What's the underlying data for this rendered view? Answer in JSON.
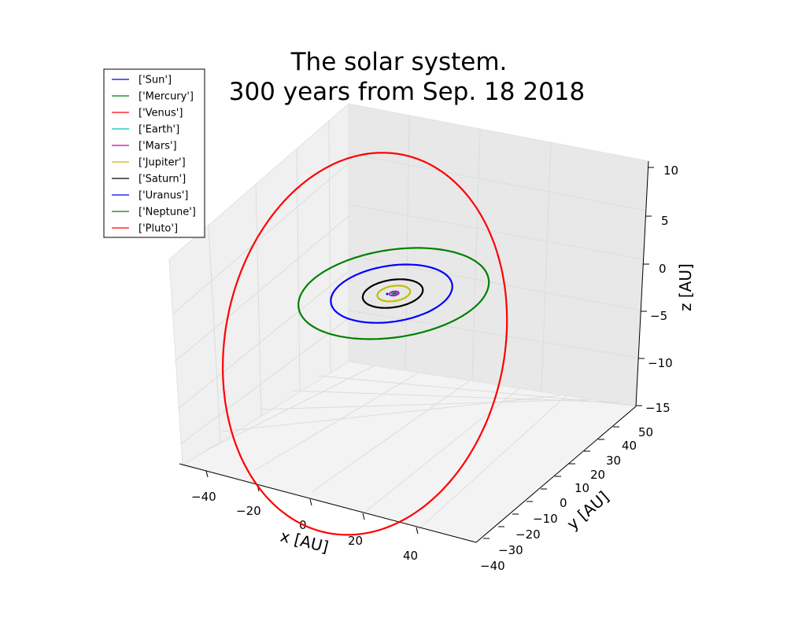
{
  "chart_data": {
    "type": "line",
    "projection": "3d",
    "title_line1": "The solar system.",
    "title_line2": "300 years from Sep. 18 2018",
    "xlabel": "x [AU]",
    "ylabel": "y [AU]",
    "zlabel": "z [AU]",
    "x_ticks": [
      "−40",
      "−20",
      "0",
      "20",
      "40"
    ],
    "y_ticks": [
      "−40",
      "−30",
      "−20",
      "−10",
      "0",
      "10",
      "20",
      "30",
      "40",
      "50"
    ],
    "z_ticks": [
      "−15",
      "−10",
      "−5",
      "0",
      "5",
      "10"
    ],
    "xlim": [
      -50,
      50
    ],
    "ylim": [
      -40,
      50
    ],
    "zlim": [
      -15,
      10
    ],
    "grid": true,
    "legend_position": "top-left",
    "series": [
      {
        "name": "['Sun']",
        "color": "#0000ff",
        "semi_major_axis": 0.0,
        "eccentricity": 0.0,
        "inclination_deg": 0
      },
      {
        "name": "['Mercury']",
        "color": "#008000",
        "semi_major_axis": 0.39,
        "eccentricity": 0.21,
        "inclination_deg": 7
      },
      {
        "name": "['Venus']",
        "color": "#ff0000",
        "semi_major_axis": 0.72,
        "eccentricity": 0.01,
        "inclination_deg": 3.4
      },
      {
        "name": "['Earth']",
        "color": "#00bfbf",
        "semi_major_axis": 1.0,
        "eccentricity": 0.02,
        "inclination_deg": 0
      },
      {
        "name": "['Mars']",
        "color": "#bf00bf",
        "semi_major_axis": 1.52,
        "eccentricity": 0.09,
        "inclination_deg": 1.9
      },
      {
        "name": "['Jupiter']",
        "color": "#bfbf00",
        "semi_major_axis": 5.2,
        "eccentricity": 0.05,
        "inclination_deg": 1.3
      },
      {
        "name": "['Saturn']",
        "color": "#000000",
        "semi_major_axis": 9.5,
        "eccentricity": 0.06,
        "inclination_deg": 2.5
      },
      {
        "name": "['Uranus']",
        "color": "#0000ff",
        "semi_major_axis": 19.2,
        "eccentricity": 0.05,
        "inclination_deg": 0.8
      },
      {
        "name": "['Neptune']",
        "color": "#008000",
        "semi_major_axis": 30.1,
        "eccentricity": 0.01,
        "inclination_deg": 1.8
      },
      {
        "name": "['Pluto']",
        "color": "#ff0000",
        "semi_major_axis": 39.5,
        "eccentricity": 0.25,
        "inclination_deg": 17
      }
    ]
  }
}
